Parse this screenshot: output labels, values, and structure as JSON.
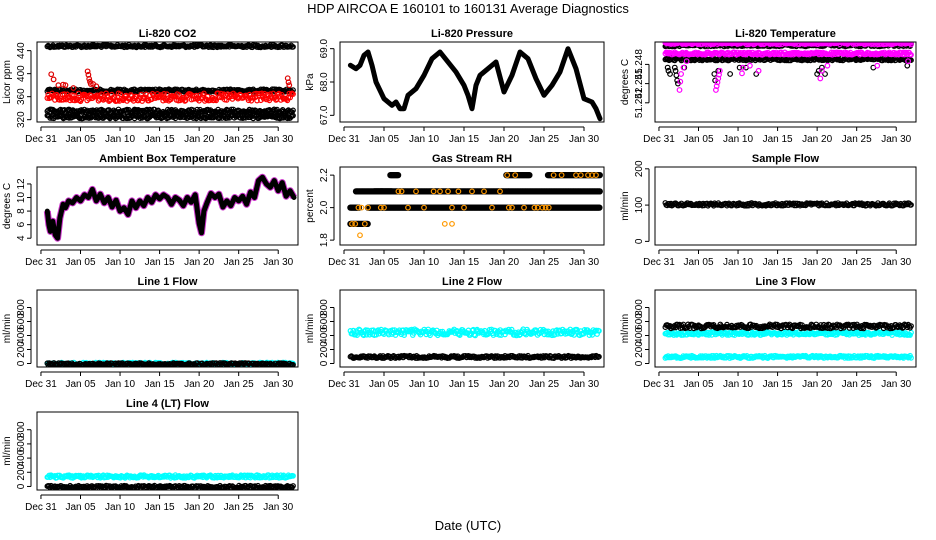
{
  "title": "HDP    AIRCOA E    160101 to 160131    Average Diagnostics",
  "xlabel": "Date (UTC)",
  "chart_data": [
    {
      "id": "li820-co2",
      "type": "scatter",
      "title": "Li-820 CO2",
      "ylabel": "Licor ppm",
      "ylim": [
        316,
        455
      ],
      "yticks": [
        320,
        360,
        400,
        440
      ],
      "ytick_labels": [
        "320",
        "360",
        "400",
        "440"
      ],
      "xlim": [
        -0.5,
        32.5
      ],
      "xticks": [
        0,
        5,
        10,
        15,
        20,
        25,
        30
      ],
      "xtick_labels": [
        "Dec 31",
        "Jan 05",
        "Jan 10",
        "Jan 15",
        "Jan 20",
        "Jan 25",
        "Jan 30"
      ],
      "series": [
        {
          "name": "band-450",
          "color": "#000000",
          "kind": "band",
          "y": [
            449,
            450
          ]
        },
        {
          "name": "band-370",
          "color": "#000000",
          "kind": "band",
          "y": [
            368,
            373
          ]
        },
        {
          "name": "red-band",
          "color": "#ff0000",
          "kind": "band",
          "y": [
            352,
            366
          ]
        },
        {
          "name": "band-335",
          "color": "#000000",
          "kind": "band",
          "y": [
            331,
            338
          ]
        },
        {
          "name": "band-325",
          "color": "#000000",
          "kind": "band",
          "y": [
            322,
            328
          ]
        },
        {
          "name": "red-outliers",
          "color": "#dd0000",
          "kind": "points",
          "x": [
            1.3,
            1.6,
            2.2,
            2.8,
            3.1,
            4.1,
            5.9,
            6.0,
            6.1,
            6.2,
            6.3,
            6.6,
            7.0,
            31.2,
            31.3,
            31.4
          ],
          "y": [
            399,
            390,
            380,
            381,
            380,
            375,
            404,
            398,
            391,
            386,
            382,
            382,
            378,
            392,
            385,
            380
          ]
        }
      ]
    },
    {
      "id": "li820-pressure",
      "type": "line",
      "title": "Li-820 Pressure",
      "ylabel": "kPa",
      "ylim": [
        66.8,
        69.2
      ],
      "yticks": [
        67,
        68,
        69
      ],
      "ytick_labels": [
        "67.0",
        "68.0",
        "69.0"
      ],
      "xlim": [
        -0.5,
        32.5
      ],
      "xticks": [
        0,
        5,
        10,
        15,
        20,
        25,
        30
      ],
      "xtick_labels": [
        "Dec 31",
        "Jan 05",
        "Jan 10",
        "Jan 15",
        "Jan 20",
        "Jan 25",
        "Jan 30"
      ],
      "series": [
        {
          "name": "pressure",
          "color": "#000000",
          "x": [
            0.8,
            1.5,
            2,
            2.5,
            3,
            3.5,
            4,
            5,
            6,
            6.5,
            7,
            7.5,
            8,
            9,
            10,
            11,
            12,
            13,
            14,
            15,
            15.5,
            16,
            16.5,
            17,
            18,
            19,
            20,
            21,
            22,
            23,
            24,
            25,
            26,
            27,
            28,
            29,
            30,
            31,
            31.5,
            32
          ],
          "y": [
            68.5,
            68.4,
            68.5,
            68.8,
            68.9,
            68.5,
            68.0,
            67.5,
            67.3,
            67.4,
            67.2,
            67.2,
            67.6,
            67.8,
            68.2,
            68.7,
            68.9,
            68.6,
            68.3,
            67.9,
            67.6,
            67.2,
            67.9,
            68.2,
            68.4,
            68.6,
            67.7,
            68.2,
            68.9,
            68.7,
            68.1,
            67.6,
            67.9,
            68.3,
            69.0,
            68.4,
            67.5,
            67.4,
            67.2,
            66.9
          ]
        }
      ]
    },
    {
      "id": "li820-temperature",
      "type": "scatter",
      "title": "Li-820 Temperature",
      "ylabel": "degrees C",
      "ylim": [
        51.239,
        51.2515
      ],
      "yticks": [
        51.242,
        51.245,
        51.248
      ],
      "ytick_labels": [
        "51.242",
        "51.245",
        "51.248"
      ],
      "xlim": [
        -0.5,
        32.5
      ],
      "xticks": [
        0,
        5,
        10,
        15,
        20,
        25,
        30
      ],
      "xtick_labels": [
        "Dec 31",
        "Jan 05",
        "Jan 10",
        "Jan 15",
        "Jan 20",
        "Jan 25",
        "Jan 30"
      ],
      "series": [
        {
          "name": "black-top",
          "color": "#000000",
          "kind": "band",
          "y": [
            51.2508,
            51.2512
          ]
        },
        {
          "name": "black-mid",
          "color": "#000000",
          "kind": "band",
          "y": [
            51.2486,
            51.249
          ]
        },
        {
          "name": "magenta-top",
          "color": "#ff00ff",
          "kind": "band",
          "y": [
            51.2512,
            51.2515
          ]
        },
        {
          "name": "magenta-mid",
          "color": "#ff00ff",
          "kind": "band",
          "y": [
            51.2495,
            51.2499
          ]
        },
        {
          "name": "black-dips",
          "color": "#000000",
          "kind": "points",
          "x": [
            1.1,
            1.2,
            1.4,
            2,
            2.1,
            2.2,
            2.3,
            2.4,
            3.2,
            7.0,
            7.1,
            7.5,
            9,
            10.2,
            11,
            12.3,
            20.0,
            20.2,
            20.6,
            21,
            27.1,
            31.4
          ],
          "y": [
            51.2475,
            51.247,
            51.2465,
            51.2475,
            51.247,
            51.2463,
            51.2455,
            51.245,
            51.2475,
            51.2465,
            51.2455,
            51.247,
            51.2465,
            51.2475,
            51.2475,
            51.2465,
            51.2465,
            51.247,
            51.2475,
            51.2465,
            51.2475,
            51.2478
          ]
        },
        {
          "name": "magenta-dips",
          "color": "#ff00ff",
          "kind": "points",
          "x": [
            2.6,
            2.7,
            2.8,
            3.1,
            3.5,
            7.2,
            7.3,
            7.4,
            7.5,
            7.6,
            7.7,
            10.5,
            10.6,
            11.5,
            12.6,
            20.4,
            20.6,
            21.3,
            27.6,
            31.5
          ],
          "y": [
            51.244,
            51.2453,
            51.2465,
            51.2475,
            51.2485,
            51.244,
            51.2446,
            51.2452,
            51.2458,
            51.2464,
            51.247,
            51.2466,
            51.2475,
            51.2478,
            51.247,
            51.2458,
            51.247,
            51.2478,
            51.2478,
            51.2485
          ]
        }
      ]
    },
    {
      "id": "ambient-box-temperature",
      "type": "line",
      "title": "Ambient Box Temperature",
      "ylabel": "degrees C",
      "ylim": [
        3,
        14.5
      ],
      "yticks": [
        4,
        6,
        8,
        10,
        12
      ],
      "ytick_labels": [
        "4",
        "6",
        "8",
        "10",
        "12"
      ],
      "xlim": [
        -0.5,
        32.5
      ],
      "xticks": [
        0,
        5,
        10,
        15,
        20,
        25,
        30
      ],
      "xtick_labels": [
        "Dec 31",
        "Jan 05",
        "Jan 10",
        "Jan 15",
        "Jan 20",
        "Jan 25",
        "Jan 30"
      ],
      "series": [
        {
          "name": "ambient",
          "color": "#000000",
          "x": [
            0.8,
            1,
            1.2,
            1.5,
            1.8,
            2.1,
            2.4,
            2.8,
            3.1,
            3.5,
            4,
            4.5,
            5,
            5.5,
            6,
            6.5,
            7,
            7.5,
            8,
            8.5,
            9,
            9.5,
            10,
            10.5,
            11,
            11.5,
            12,
            12.5,
            13,
            13.5,
            14,
            14.5,
            15,
            15.5,
            16,
            16.5,
            17,
            17.5,
            18,
            18.5,
            19,
            19.5,
            20,
            20.3,
            20.6,
            21,
            21.5,
            22,
            22.5,
            23,
            23.5,
            24,
            24.5,
            25,
            25.5,
            26,
            26.5,
            27,
            27.5,
            28,
            28.5,
            29,
            29.5,
            30,
            30.5,
            31,
            31.5,
            32
          ],
          "y": [
            8,
            6,
            5,
            6.5,
            4.5,
            4,
            7,
            9,
            8.5,
            9.5,
            9.2,
            10,
            9.5,
            10.4,
            10,
            11.2,
            9.5,
            10.5,
            9.2,
            10,
            8.6,
            9.6,
            8,
            8.5,
            7.5,
            9.5,
            8.5,
            9.5,
            8.8,
            10,
            9.3,
            10.4,
            9.8,
            10.4,
            10,
            9,
            10,
            9.6,
            8.8,
            10,
            9.3,
            10.4,
            6.2,
            4.8,
            8,
            9.2,
            10.6,
            10,
            10.5,
            8.6,
            9.5,
            8.8,
            10,
            9.5,
            10.2,
            9,
            10.8,
            10,
            12.5,
            13,
            12,
            11.5,
            12.5,
            11,
            12.2,
            10.2,
            11,
            10
          ]
        },
        {
          "name": "ambient-alt",
          "color": "#cc33cc",
          "kind": "halo"
        }
      ]
    },
    {
      "id": "gas-stream-rh",
      "type": "scatter",
      "title": "Gas Stream RH",
      "ylabel": "percent",
      "ylim": [
        1.77,
        2.25
      ],
      "yticks": [
        1.8,
        2.0,
        2.2
      ],
      "ytick_labels": [
        "1.8",
        "2.0",
        "2.2"
      ],
      "xlim": [
        -0.5,
        32.5
      ],
      "xticks": [
        0,
        5,
        10,
        15,
        20,
        25,
        30
      ],
      "xtick_labels": [
        "Dec 31",
        "Jan 05",
        "Jan 10",
        "Jan 15",
        "Jan 20",
        "Jan 25",
        "Jan 30"
      ],
      "series": [
        {
          "name": "rh-black",
          "color": "#000000",
          "kind": "steps",
          "segments": [
            [
              0.8,
              3.0,
              1.9
            ],
            [
              0.8,
              2.0,
              2.0
            ],
            [
              3.0,
              32,
              2.0
            ],
            [
              1.5,
              32,
              2.1
            ],
            [
              5.8,
              6.8,
              2.2
            ],
            [
              20.3,
              23.2,
              2.2
            ],
            [
              25.5,
              32,
              2.2
            ],
            [
              3.8,
              6.0,
              2.1
            ]
          ]
        },
        {
          "name": "rh-orange",
          "color": "#ff9900",
          "kind": "points",
          "x": [
            1.0,
            1.4,
            2.0,
            2.6,
            6.8,
            7.2,
            8.0,
            9.0,
            10.0,
            11.2,
            12.0,
            13.0,
            13.5,
            14.3,
            15.0,
            16.0,
            17.5,
            18.5,
            19.5,
            20.4,
            21.4,
            22.5,
            23.8,
            24.2,
            24.8,
            25.2,
            25.6,
            26.2,
            27.2,
            29.0,
            29.6,
            30.5,
            31.0,
            31.5,
            12.6,
            13.5,
            1.8,
            2.2,
            3.0,
            4.6,
            5.0,
            20.6,
            21.0
          ],
          "y": [
            1.9,
            1.9,
            1.83,
            1.9,
            2.1,
            2.1,
            2.0,
            2.1,
            2.0,
            2.1,
            2.1,
            2.1,
            2.0,
            2.1,
            2.0,
            2.1,
            2.1,
            2.0,
            2.1,
            2.2,
            2.2,
            2.0,
            2.0,
            2.0,
            2.0,
            2.0,
            2.0,
            2.2,
            2.2,
            2.2,
            2.2,
            2.2,
            2.2,
            2.2,
            1.9,
            1.9,
            2.0,
            2.0,
            2.0,
            2.0,
            2.0,
            2.0,
            2.0
          ]
        }
      ]
    },
    {
      "id": "sample-flow",
      "type": "scatter",
      "title": "Sample Flow",
      "ylabel": "ml/min",
      "ylim": [
        -10,
        205
      ],
      "yticks": [
        0,
        100,
        200
      ],
      "ytick_labels": [
        "0",
        "100",
        "200"
      ],
      "xlim": [
        -0.5,
        32.5
      ],
      "xticks": [
        0,
        5,
        10,
        15,
        20,
        25,
        30
      ],
      "xtick_labels": [
        "Dec 31",
        "Jan 05",
        "Jan 10",
        "Jan 15",
        "Jan 20",
        "Jan 25",
        "Jan 30"
      ],
      "series": [
        {
          "name": "sample",
          "color": "#000000",
          "kind": "band",
          "y": [
            98,
            106
          ]
        }
      ]
    },
    {
      "id": "line1-flow",
      "type": "scatter",
      "title": "Line 1 Flow",
      "ylabel": "ml/min",
      "ylim": [
        -50,
        1050
      ],
      "yticks": [
        0,
        200,
        400,
        600,
        800
      ],
      "ytick_labels": [
        "0",
        "200",
        "400",
        "600",
        "800"
      ],
      "xlim": [
        -0.5,
        32.5
      ],
      "xticks": [
        0,
        5,
        10,
        15,
        20,
        25,
        30
      ],
      "xtick_labels": [
        "Dec 31",
        "Jan 05",
        "Jan 10",
        "Jan 15",
        "Jan 20",
        "Jan 25",
        "Jan 30"
      ],
      "series": [
        {
          "name": "line1-cyan",
          "color": "#00ffff",
          "kind": "band",
          "y": [
            -5,
            15
          ]
        },
        {
          "name": "line1-black",
          "color": "#000000",
          "kind": "band",
          "y": [
            -5,
            8
          ]
        }
      ]
    },
    {
      "id": "line2-flow",
      "type": "scatter",
      "title": "Line 2 Flow",
      "ylabel": "ml/min",
      "ylim": [
        -50,
        1050
      ],
      "yticks": [
        0,
        200,
        400,
        600,
        800
      ],
      "ytick_labels": [
        "0",
        "200",
        "400",
        "600",
        "800"
      ],
      "xlim": [
        -0.5,
        32.5
      ],
      "xticks": [
        0,
        5,
        10,
        15,
        20,
        25,
        30
      ],
      "xtick_labels": [
        "Dec 31",
        "Jan 05",
        "Jan 10",
        "Jan 15",
        "Jan 20",
        "Jan 25",
        "Jan 30"
      ],
      "series": [
        {
          "name": "line2-cyan",
          "color": "#00ffff",
          "kind": "band",
          "y": [
            400,
            490
          ]
        },
        {
          "name": "line2-black",
          "color": "#000000",
          "kind": "band",
          "y": [
            95,
            112
          ]
        }
      ]
    },
    {
      "id": "line3-flow",
      "type": "scatter",
      "title": "Line 3 Flow",
      "ylabel": "ml/min",
      "ylim": [
        -50,
        1050
      ],
      "yticks": [
        0,
        200,
        400,
        600,
        800
      ],
      "ytick_labels": [
        "0",
        "200",
        "400",
        "600",
        "800"
      ],
      "xlim": [
        -0.5,
        32.5
      ],
      "xticks": [
        0,
        5,
        10,
        15,
        20,
        25,
        30
      ],
      "xtick_labels": [
        "Dec 31",
        "Jan 05",
        "Jan 10",
        "Jan 15",
        "Jan 20",
        "Jan 25",
        "Jan 30"
      ],
      "series": [
        {
          "name": "line3-cyan-hi",
          "color": "#00ffff",
          "kind": "band",
          "y": [
            405,
            450
          ]
        },
        {
          "name": "line3-black",
          "color": "#000000",
          "kind": "band",
          "y": [
            500,
            560
          ]
        },
        {
          "name": "line3-cyan-lo",
          "color": "#00ffff",
          "kind": "band",
          "y": [
            90,
            112
          ]
        }
      ]
    },
    {
      "id": "line4-flow",
      "type": "scatter",
      "title": "Line 4 (LT) Flow",
      "ylabel": "ml/min",
      "ylim": [
        -50,
        1050
      ],
      "yticks": [
        0,
        200,
        400,
        600,
        800
      ],
      "ytick_labels": [
        "0",
        "200",
        "400",
        "600",
        "800"
      ],
      "xlim": [
        -0.5,
        32.5
      ],
      "xticks": [
        0,
        5,
        10,
        15,
        20,
        25,
        30
      ],
      "xtick_labels": [
        "Dec 31",
        "Jan 05",
        "Jan 10",
        "Jan 15",
        "Jan 20",
        "Jan 25",
        "Jan 30"
      ],
      "series": [
        {
          "name": "line4-cyan",
          "color": "#00ffff",
          "kind": "band",
          "y": [
            120,
            160
          ]
        },
        {
          "name": "line4-black",
          "color": "#000000",
          "kind": "band",
          "y": [
            -5,
            12
          ]
        }
      ]
    }
  ]
}
